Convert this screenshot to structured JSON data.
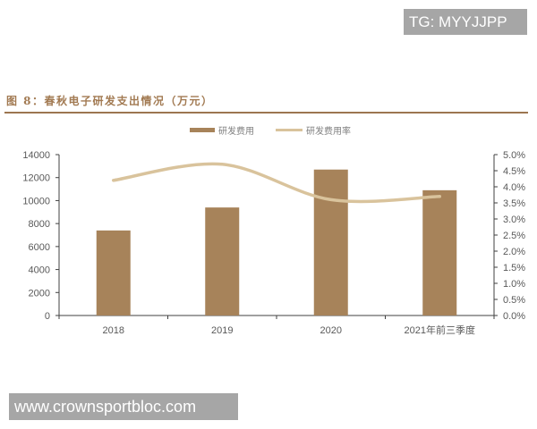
{
  "watermarks": {
    "top_right": "TG: MYYJJPP",
    "bottom_left": "www.crownsportbloc.com"
  },
  "figure": {
    "title": "图 8：春秋电子研发支出情况（万元）"
  },
  "colors": {
    "bar": "#a7835a",
    "line": "#d9c39c",
    "title": "#a27a52",
    "rule": "#9c7650",
    "axis": "#404040",
    "badge_bg": "#a6a6a6"
  },
  "legend": [
    {
      "name": "研发费用",
      "type": "bar"
    },
    {
      "name": "研发费用率",
      "type": "line"
    }
  ],
  "axes": {
    "left_ticks": [
      "14000",
      "12000",
      "10000",
      "8000",
      "6000",
      "4000",
      "2000",
      "0"
    ],
    "right_ticks": [
      "5.0%",
      "4.5%",
      "4.0%",
      "3.5%",
      "3.0%",
      "2.5%",
      "2.0%",
      "1.5%",
      "1.0%",
      "0.5%",
      "0.0%"
    ],
    "categories": [
      "2018",
      "2019",
      "2020",
      "2021年前三季度"
    ]
  },
  "chart_data": {
    "type": "bar",
    "title": "图 8：春秋电子研发支出情况（万元）",
    "categories": [
      "2018",
      "2019",
      "2020",
      "2021年前三季度"
    ],
    "series": [
      {
        "name": "研发费用",
        "type": "bar",
        "axis": "left",
        "values": [
          7400,
          9400,
          12700,
          10900
        ]
      },
      {
        "name": "研发费用率",
        "type": "line",
        "axis": "right",
        "smooth": true,
        "values": [
          4.2,
          4.7,
          3.6,
          3.7
        ],
        "unit": "%"
      }
    ],
    "xlabel": "",
    "ylabel": "",
    "ylim": [
      0,
      14000
    ],
    "y2lim": [
      0,
      5.0
    ],
    "yticks": [
      0,
      2000,
      4000,
      6000,
      8000,
      10000,
      12000,
      14000
    ],
    "y2ticks": [
      0.0,
      0.5,
      1.0,
      1.5,
      2.0,
      2.5,
      3.0,
      3.5,
      4.0,
      4.5,
      5.0
    ],
    "grid": false,
    "legend_position": "top"
  }
}
